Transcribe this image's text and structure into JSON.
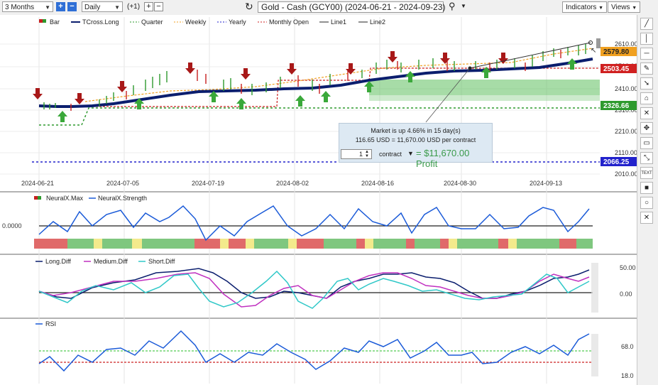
{
  "toolbar": {
    "period": "3 Months",
    "interval": "Daily",
    "offset": "(+1)",
    "title": "Gold - Cash (GCY00) (2024-06-21 - 2024-09-23)",
    "indicators_label": "Indicators",
    "views_label": "Views"
  },
  "legend": {
    "bar": "Bar",
    "tcross": "TCross.Long",
    "quarter": "Quarter",
    "weekly": "Weekly",
    "yearly": "Yearly",
    "monthly_open": "Monthly Open",
    "line1": "Line1",
    "line2": "Line2"
  },
  "price_labels": {
    "last": "2579.80",
    "monthly_open": "2503.45",
    "quarter": "2326.66",
    "yearly": "2066.25"
  },
  "price_axis": [
    "2610.00",
    "2510.00",
    "2410.00",
    "2310.00",
    "2210.00",
    "2110.00",
    "2010.00"
  ],
  "date_axis": [
    "2024-06-21",
    "2024-07-05",
    "2024-07-19",
    "2024-08-02",
    "2024-08-16",
    "2024-08-30",
    "2024-09-13"
  ],
  "popup": {
    "line1": "Market is up 4.66% in 15 day(s)",
    "line2": "116.65 USD = 11,670.00 USD per contract",
    "quantity": "1",
    "unit": "contract",
    "profit": "= $11,670.00 Profit"
  },
  "panels": {
    "neuralx": {
      "max_label": "NeuralX.Max",
      "strength_label": "NeuralX.Strength",
      "axis": "0.0000"
    },
    "diff": {
      "long_label": "Long.Diff",
      "medium_label": "Medium.Diff",
      "short_label": "Short.Diff",
      "axis_top": "50.00",
      "axis_mid": "0.00"
    },
    "rsi": {
      "label": "RSI",
      "axis_top": "68.0",
      "axis_bottom": "18.0"
    }
  },
  "colors": {
    "tcross": "#0b1e6e",
    "quarter": "#2e9a2e",
    "weekly": "#f0a020",
    "yearly": "#2222cc",
    "monthly_open": "#cc2020",
    "strength": "#1a5ad8",
    "medium": "#c030c0",
    "short": "#30c8c8",
    "last_price_tag": "#f0a020",
    "monthly_tag": "#d02020",
    "quarter_tag": "#2e9a2e",
    "yearly_tag": "#2222cc"
  },
  "tools": [
    "line-tool-icon",
    "vertical-line-icon",
    "horizontal-line-icon",
    "pen-icon",
    "arrow-tool-icon",
    "label-tool-icon",
    "delete-tool-icon",
    "crosshair-icon",
    "note-icon",
    "measure-icon",
    "text-tool-icon",
    "rectangle-icon",
    "circle-icon",
    "close-icon"
  ],
  "tool_text": {
    "text_tool": "TEXT"
  }
}
